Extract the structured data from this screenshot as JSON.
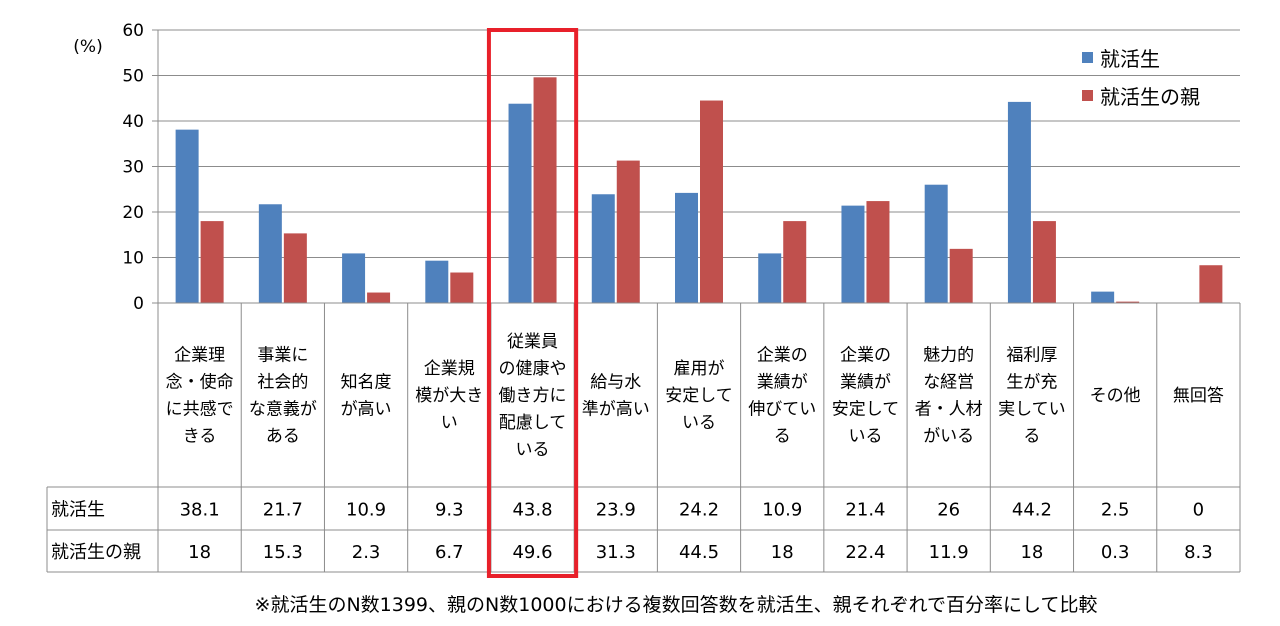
{
  "chart_data": {
    "type": "bar",
    "ylabel": "(%)",
    "ylim": [
      0,
      60
    ],
    "yticks": [
      0,
      10,
      20,
      30,
      40,
      50,
      60
    ],
    "grid": true,
    "legend_position": "top-right",
    "categories": [
      [
        "企業理",
        "念・使命",
        "に共感で",
        "きる"
      ],
      [
        "事業に",
        "社会的",
        "な意義が",
        "ある"
      ],
      [
        "知名度",
        "が高い"
      ],
      [
        "企業規",
        "模が大き",
        "い"
      ],
      [
        "従業員",
        "の健康や",
        "働き方に",
        "配慮して",
        "いる"
      ],
      [
        "給与水",
        "準が高い"
      ],
      [
        "雇用が",
        "安定して",
        "いる"
      ],
      [
        "企業の",
        "業績が",
        "伸びてい",
        "る"
      ],
      [
        "企業の",
        "業績が",
        "安定して",
        "いる"
      ],
      [
        "魅力的",
        "な経営",
        "者・人材",
        "がいる"
      ],
      [
        "福利厚",
        "生が充",
        "実してい",
        "る"
      ],
      [
        "その他"
      ],
      [
        "無回答"
      ]
    ],
    "series": [
      {
        "name": "就活生",
        "color": "#4f81bd",
        "values": [
          38.1,
          21.7,
          10.9,
          9.3,
          43.8,
          23.9,
          24.2,
          10.9,
          21.4,
          26,
          44.2,
          2.5,
          0
        ],
        "labels": [
          "38.1",
          "21.7",
          "10.9",
          "9.3",
          "43.8",
          "23.9",
          "24.2",
          "10.9",
          "21.4",
          "26",
          "44.2",
          "2.5",
          "0"
        ]
      },
      {
        "name": "就活生の親",
        "color": "#c0504d",
        "values": [
          18,
          15.3,
          2.3,
          6.7,
          49.6,
          31.3,
          44.5,
          18,
          22.4,
          11.9,
          18,
          0.3,
          8.3
        ],
        "labels": [
          "18",
          "15.3",
          "2.3",
          "6.7",
          "49.6",
          "31.3",
          "44.5",
          "18",
          "22.4",
          "11.9",
          "18",
          "0.3",
          "8.3"
        ]
      }
    ],
    "highlight_category_index": 4,
    "highlight_color": "#e8202a"
  },
  "footnote": "※就活生のN数1399、親のN数1000における複数回答数を就活生、親それぞれで百分率にして比較"
}
